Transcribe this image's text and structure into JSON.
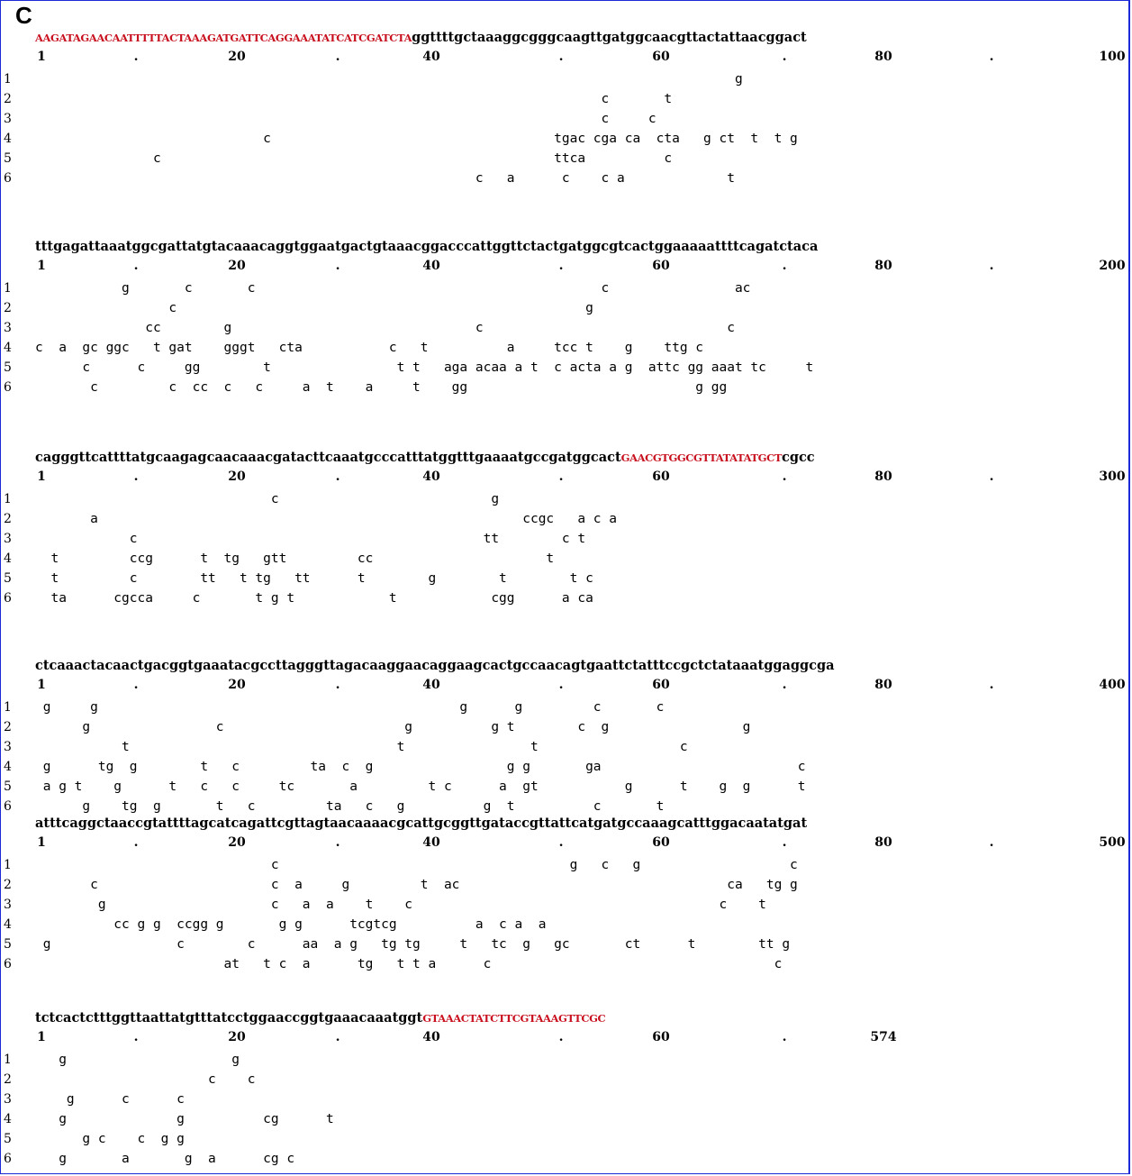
{
  "panel_label": "C",
  "blocks": [
    {
      "pre": "",
      "highlight": "AAGATAGAACAATTTTTACTAAAGATGATTCAGGAAATATCATCGATCTA",
      "post": "ggttttgctaaaggcgggcaagttgatggcaacgttactattaacggact",
      "ticks": [
        "1",
        ".",
        "20",
        ".",
        "40",
        ".",
        "60",
        ".",
        "80",
        ".",
        "100"
      ],
      "rows": [
        {
          "num": "1",
          "text": "                                                                                         g"
        },
        {
          "num": "2",
          "text": "                                                                        c       t"
        },
        {
          "num": "3",
          "text": "                                                                        c     c"
        },
        {
          "num": "4",
          "text": "                             c                                    tgac cga ca  cta   g ct  t  t g"
        },
        {
          "num": "5",
          "text": "               c                                                  ttca          c"
        },
        {
          "num": "6",
          "text": "                                                        c   a      c    c a             t"
        }
      ]
    },
    {
      "pre": "tttgagattaaatggcgattatgtacaaacaggtggaatgactgtaaacggacccattggttctactgatggcgtcactggaaaaattttcagatctaca",
      "highlight": "",
      "post": "",
      "ticks": [
        "1",
        ".",
        "20",
        ".",
        "40",
        ".",
        "60",
        ".",
        "80",
        ".",
        "200"
      ],
      "rows": [
        {
          "num": "1",
          "text": "           g       c       c                                            c                ac"
        },
        {
          "num": "2",
          "text": "                 c                                                    g"
        },
        {
          "num": "3",
          "text": "              cc        g                               c                               c"
        },
        {
          "num": "4",
          "text": "c  a  gc ggc   t gat    gggt   cta           c   t          a     tcc t    g    ttg c"
        },
        {
          "num": "5",
          "text": "      c      c     gg        t                t t   aga acaa a t  c acta a g  attc gg aaat tc     t"
        },
        {
          "num": "6",
          "text": "       c         c  cc  c   c     a  t    a     t    gg                             g gg"
        }
      ]
    },
    {
      "pre": "cagggttcattttatgcaagagcaacaaacgatacttcaaatgcccatttatggtttgaaaatgccgatggcact",
      "highlight": "GAACGTGGCGTTATATATGCT",
      "post": "cgcc",
      "ticks": [
        "1",
        ".",
        "20",
        ".",
        "40",
        ".",
        "60",
        ".",
        "80",
        ".",
        "300"
      ],
      "rows": [
        {
          "num": "1",
          "text": "                              c                           g"
        },
        {
          "num": "2",
          "text": "       a                                                      ccgc   a c a"
        },
        {
          "num": "3",
          "text": "            c                                            tt        c t"
        },
        {
          "num": "4",
          "text": "  t         ccg      t  tg   gtt         cc                      t"
        },
        {
          "num": "5",
          "text": "  t         c        tt   t tg   tt      t        g        t        t c"
        },
        {
          "num": "6",
          "text": "  ta      cgcca     c       t g t            t            cgg      a ca"
        }
      ]
    },
    {
      "pre": "ctcaaactacaactgacggtgaaatacgccttagggttagacaaggaacaggaagcactgccaacagtgaattctatttccgctctataaatggaggcga",
      "highlight": "",
      "post": "",
      "ticks": [
        "1",
        ".",
        "20",
        ".",
        "40",
        ".",
        "60",
        ".",
        "80",
        ".",
        "400"
      ],
      "rows": [
        {
          "num": "1",
          "text": " g     g                                              g      g         c       c"
        },
        {
          "num": "2",
          "text": "      g                c                       g          g t        c  g                 g"
        },
        {
          "num": "3",
          "text": "           t                                  t                t                  c"
        },
        {
          "num": "4",
          "text": " g      tg  g        t   c         ta  c  g                 g g       ga                         c"
        },
        {
          "num": "5",
          "text": " a g t    g      t   c   c     tc       a         t c      a  gt           g      t    g  g      t"
        },
        {
          "num": "6",
          "text": "      g    tg  g       t   c         ta   c   g          g  t          c       t"
        }
      ]
    },
    {
      "pre": "atttcaggctaaccgtattttagcatcagattcgttagtaacaaaacgcattgcggttgataccgttattcatgatgccaaagcatttggacaatatgat",
      "highlight": "",
      "post": "",
      "ticks": [
        "1",
        ".",
        "20",
        ".",
        "40",
        ".",
        "60",
        ".",
        "80",
        ".",
        "500"
      ],
      "rows": [
        {
          "num": "1",
          "text": "                              c                                     g   c   g                   c"
        },
        {
          "num": "2",
          "text": "       c                      c  a     g         t  ac                                  ca   tg g"
        },
        {
          "num": "3",
          "text": "        g                     c   a  a    t    c                                       c    t"
        },
        {
          "num": "4",
          "text": "          cc g g  ccgg g       g g      tcgtcg          a  c a  a"
        },
        {
          "num": "5",
          "text": " g                c        c      aa  a g   tg tg     t   tc  g   gc       ct      t        tt g"
        },
        {
          "num": "6",
          "text": "                        at   t c  a      tg   t t a      c                                    c"
        }
      ]
    },
    {
      "pre": "tctcactctttggttaattatgtttatcctggaaccggtgaaacaaatggt",
      "highlight": "GTAAACTATCTTCGTAAAGTTCGC",
      "post": "",
      "ticks": [
        "1",
        ".",
        "20",
        ".",
        "40",
        ".",
        "60",
        ".",
        "574",
        "",
        ""
      ],
      "rows": [
        {
          "num": "1",
          "text": "   g                     g"
        },
        {
          "num": "2",
          "text": "                      c    c"
        },
        {
          "num": "3",
          "text": "    g      c      c"
        },
        {
          "num": "4",
          "text": "   g              g          cg      t"
        },
        {
          "num": "5",
          "text": "      g c    c  g g"
        },
        {
          "num": "6",
          "text": "   g       a       g  a      cg c"
        }
      ]
    }
  ]
}
